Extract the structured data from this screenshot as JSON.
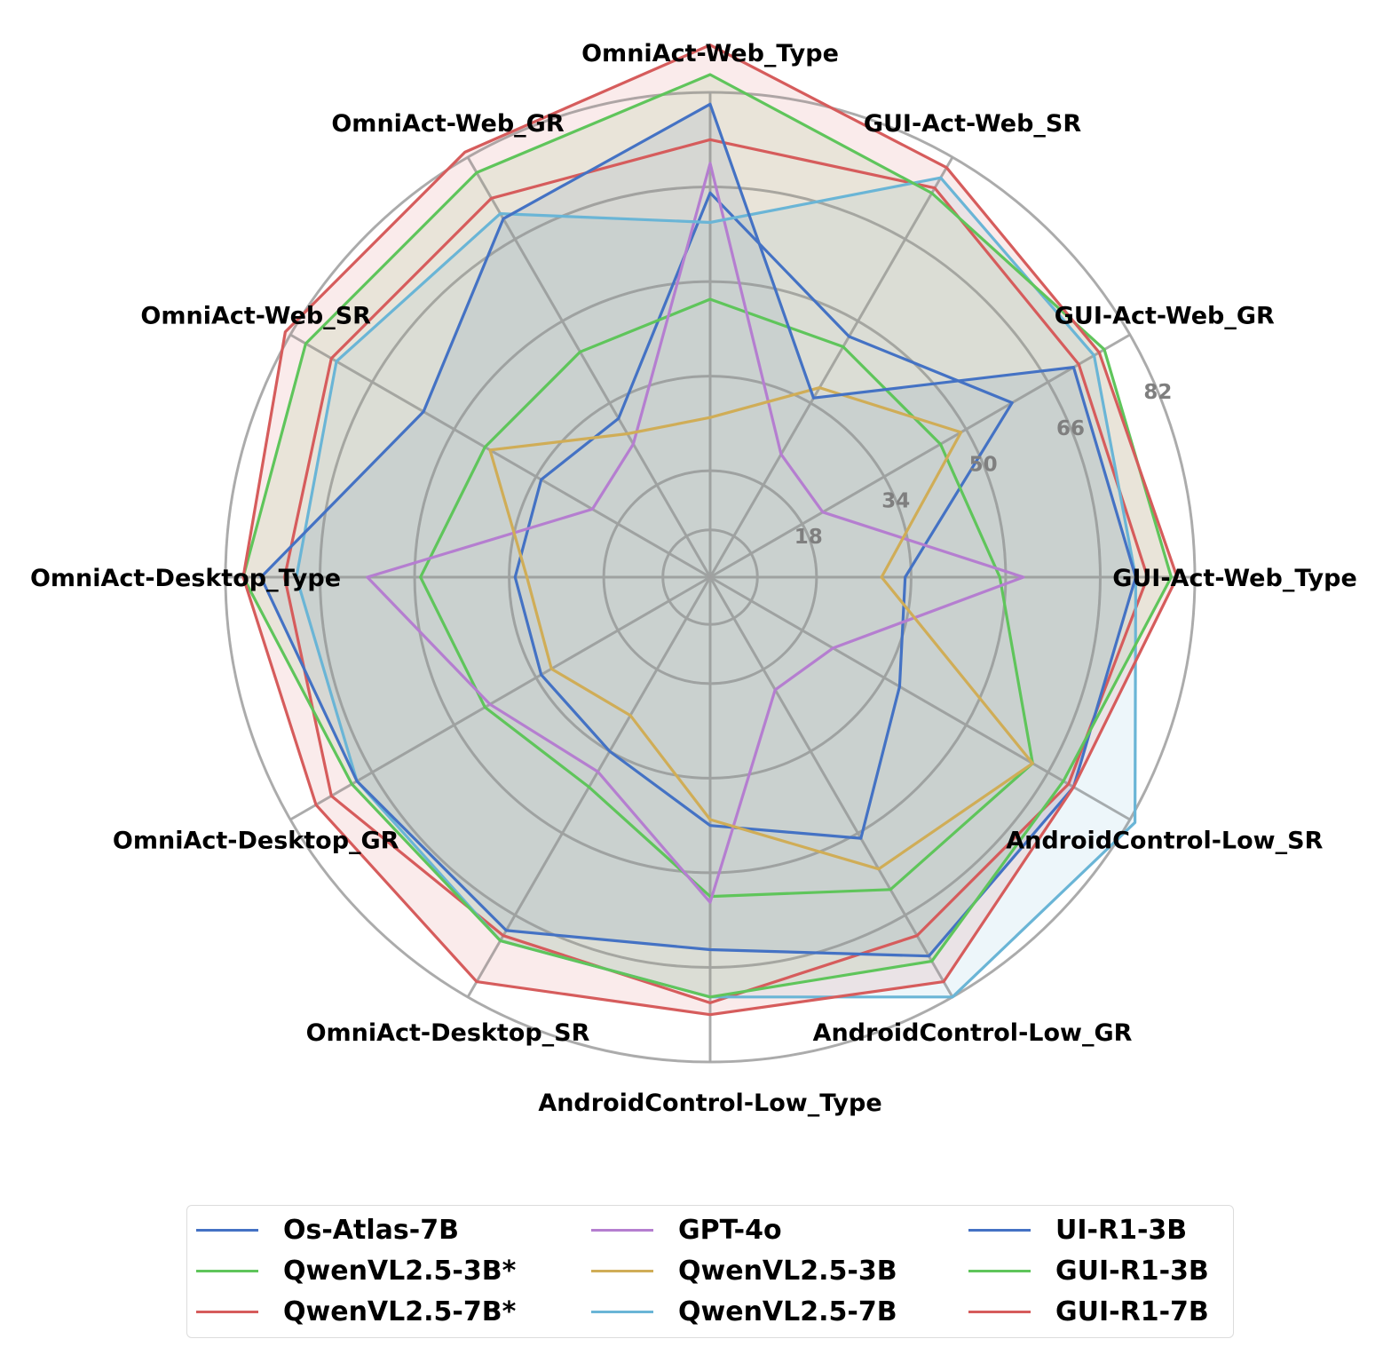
{
  "chart_data": {
    "type": "radar",
    "axes": [
      "GUI-Act-Web_Type",
      "GUI-Act-Web_GR",
      "GUI-Act-Web_SR",
      "OmniAct-Web_Type",
      "OmniAct-Web_GR",
      "OmniAct-Web_SR",
      "OmniAct-Desktop_Type",
      "OmniAct-Desktop_GR",
      "OmniAct-Desktop_SR",
      "AndroidControl-Low_Type",
      "AndroidControl-Low_GR",
      "AndroidControl-Low_SR"
    ],
    "rlim": [
      0,
      82
    ],
    "ticks": [
      18,
      34,
      50,
      66,
      82
    ],
    "grid": true,
    "legend_position": "bottom",
    "series": [
      {
        "name": "Os-Atlas-7B",
        "color": "#4472c4",
        "fill": false,
        "values": [
          33,
          59,
          47,
          65,
          31,
          33,
          33,
          33,
          34,
          42,
          51,
          37
        ]
      },
      {
        "name": "QwenVL2.5-3B*",
        "color": "#5fc55b",
        "fill": false,
        "values": [
          49,
          45,
          45,
          47,
          44,
          44,
          49,
          44,
          41,
          54,
          61,
          63
        ]
      },
      {
        "name": "QwenVL2.5-7B*",
        "color": "#d65c5c",
        "fill": false,
        "values": [
          74,
          72,
          76,
          74,
          74,
          74,
          72,
          74,
          70,
          72,
          70,
          70
        ]
      },
      {
        "name": "GPT-4o",
        "color": "#b57ed0",
        "fill": false,
        "values": [
          53,
          22,
          24,
          70,
          26,
          23,
          58,
          43,
          38,
          55,
          22,
          24
        ]
      },
      {
        "name": "QwenVL2.5-3B",
        "color": "#d0ad57",
        "fill": false,
        "values": [
          29,
          49,
          37,
          27,
          28,
          43,
          31,
          31,
          27,
          41,
          57,
          63
        ]
      },
      {
        "name": "QwenVL2.5-7B",
        "color": "#6ab5d6",
        "fill": true,
        "values": [
          72,
          75,
          78,
          60,
          71,
          73,
          70,
          69,
          71,
          71,
          82,
          83
        ]
      },
      {
        "name": "UI-R1-3B",
        "color": "#4472c4",
        "fill": true,
        "values": [
          72,
          71,
          35,
          80,
          70,
          56,
          76,
          69,
          69,
          63,
          74,
          71
        ]
      },
      {
        "name": "GUI-R1-3B",
        "color": "#5fc55b",
        "fill": true,
        "values": [
          78,
          77,
          75,
          85,
          79,
          79,
          79,
          70,
          71,
          71,
          75,
          69
        ]
      },
      {
        "name": "GUI-R1-7B",
        "color": "#d65c5c",
        "fill": true,
        "values": [
          79,
          76,
          80,
          90,
          83,
          83,
          79,
          77,
          79,
          74,
          79,
          71
        ]
      }
    ]
  },
  "legend": [
    {
      "label": "Os-Atlas-7B",
      "color": "#4472c4"
    },
    {
      "label": "QwenVL2.5-3B*",
      "color": "#5fc55b"
    },
    {
      "label": "QwenVL2.5-7B*",
      "color": "#d65c5c"
    },
    {
      "label": "GPT-4o",
      "color": "#b57ed0"
    },
    {
      "label": "QwenVL2.5-3B",
      "color": "#d0ad57"
    },
    {
      "label": "QwenVL2.5-7B",
      "color": "#6ab5d6"
    },
    {
      "label": "UI-R1-3B",
      "color": "#4472c4"
    },
    {
      "label": "GUI-R1-3B",
      "color": "#5fc55b"
    },
    {
      "label": "GUI-R1-7B",
      "color": "#d65c5c"
    }
  ]
}
